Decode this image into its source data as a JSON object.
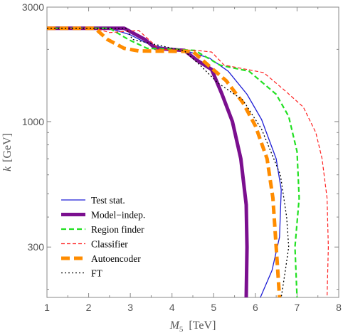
{
  "chart_data": {
    "type": "line",
    "xlabel_var": "M",
    "xlabel_sub": "5",
    "xlabel_unit": "[TeV]",
    "ylabel_var": "k",
    "ylabel_unit": "[GeV]",
    "xlim": [
      1,
      8
    ],
    "ylim": [
      185,
      3000
    ],
    "yscale": "log",
    "xticks": [
      1,
      2,
      3,
      4,
      5,
      6,
      7,
      8
    ],
    "yticks": [
      300,
      1000,
      3000
    ],
    "legend_position": "bottom-left",
    "series": [
      {
        "name": "Test stat.",
        "color": "#1f1fd6",
        "dash": "",
        "width": 1.3,
        "points": [
          [
            1,
            2450
          ],
          [
            2.5,
            2450
          ],
          [
            3,
            2300
          ],
          [
            3.4,
            2120
          ],
          [
            3.7,
            2050
          ],
          [
            4.3,
            1980
          ],
          [
            4.9,
            1840
          ],
          [
            5.35,
            1620
          ],
          [
            5.8,
            1300
          ],
          [
            6.15,
            1020
          ],
          [
            6.5,
            700
          ],
          [
            6.62,
            520
          ],
          [
            6.58,
            330
          ],
          [
            6.4,
            240
          ],
          [
            6.12,
            185
          ]
        ]
      },
      {
        "name": "Model−indep.",
        "color": "#7b0f8f",
        "dash": "",
        "width": 5,
        "points": [
          [
            1,
            2450
          ],
          [
            2.85,
            2450
          ],
          [
            3.35,
            2200
          ],
          [
            3.6,
            2020
          ],
          [
            4.3,
            1980
          ],
          [
            4.6,
            1800
          ],
          [
            4.95,
            1650
          ],
          [
            5.2,
            1300
          ],
          [
            5.45,
            1000
          ],
          [
            5.65,
            700
          ],
          [
            5.78,
            450
          ],
          [
            5.8,
            300
          ],
          [
            5.78,
            185
          ]
        ]
      },
      {
        "name": "Region finder",
        "color": "#22e022",
        "dash": "7,4",
        "width": 2.2,
        "points": [
          [
            1,
            2450
          ],
          [
            2.5,
            2450
          ],
          [
            2.95,
            2200
          ],
          [
            3.4,
            2020
          ],
          [
            4.1,
            2000
          ],
          [
            4.55,
            1980
          ],
          [
            5.15,
            1720
          ],
          [
            5.85,
            1620
          ],
          [
            6.5,
            1300
          ],
          [
            6.8,
            1050
          ],
          [
            7.0,
            750
          ],
          [
            7.05,
            480
          ],
          [
            6.95,
            300
          ],
          [
            7.0,
            185
          ]
        ]
      },
      {
        "name": "Classifier",
        "color": "#ff2020",
        "dash": "5,3",
        "width": 1.2,
        "points": [
          [
            1,
            2450
          ],
          [
            2.15,
            2450
          ],
          [
            2.5,
            2350
          ],
          [
            3.2,
            2400
          ],
          [
            3.7,
            2000
          ],
          [
            4.6,
            1980
          ],
          [
            4.95,
            1950
          ],
          [
            5.25,
            1720
          ],
          [
            5.8,
            1650
          ],
          [
            6.2,
            1600
          ],
          [
            6.7,
            1350
          ],
          [
            7.15,
            1150
          ],
          [
            7.45,
            900
          ],
          [
            7.6,
            700
          ],
          [
            7.72,
            480
          ],
          [
            7.75,
            300
          ],
          [
            7.72,
            185
          ]
        ]
      },
      {
        "name": "Autoencoder",
        "color": "#ff8c00",
        "dash": "12,6",
        "width": 5,
        "points": [
          [
            1,
            2450
          ],
          [
            2.15,
            2450
          ],
          [
            2.45,
            2200
          ],
          [
            2.85,
            2020
          ],
          [
            3.2,
            1970
          ],
          [
            4.5,
            1960
          ],
          [
            4.9,
            1700
          ],
          [
            5.3,
            1480
          ],
          [
            5.7,
            1200
          ],
          [
            6.0,
            960
          ],
          [
            6.28,
            700
          ],
          [
            6.42,
            480
          ],
          [
            6.5,
            300
          ],
          [
            6.58,
            185
          ]
        ]
      },
      {
        "name": "FT",
        "color": "#000000",
        "dash": "2,3",
        "width": 1.3,
        "points": [
          [
            1,
            2450
          ],
          [
            2.9,
            2450
          ],
          [
            3.05,
            2200
          ],
          [
            4.3,
            1970
          ],
          [
            4.7,
            1700
          ],
          [
            5.1,
            1450
          ],
          [
            5.7,
            1230
          ],
          [
            6.15,
            930
          ],
          [
            6.6,
            600
          ],
          [
            6.75,
            400
          ],
          [
            6.8,
            300
          ],
          [
            6.72,
            240
          ],
          [
            6.62,
            185
          ]
        ]
      }
    ]
  }
}
